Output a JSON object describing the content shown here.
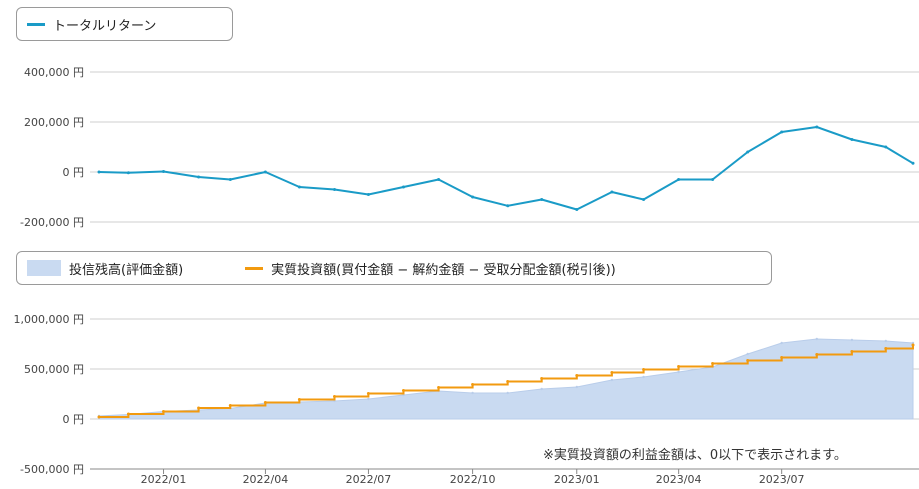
{
  "legend_top": {
    "series_label": "トータルリターン",
    "color": "#1a9bc7"
  },
  "legend_bottom": {
    "area_label": "投信残高(評価金額)",
    "area_color": "#c9daf1",
    "line_label": "実質投資額(買付金額 − 解約金額 − 受取分配金額(税引後))",
    "line_color": "#f29a0f"
  },
  "note": "※実質投資額の利益金額は、0以下で表示されます。",
  "chart_data": [
    {
      "type": "line",
      "title": "",
      "series": [
        {
          "name": "トータルリターン",
          "color": "#1a9bc7",
          "x": [
            "2021-11-05",
            "2021-12-01",
            "2022-01-01",
            "2022-02-01",
            "2022-03-01",
            "2022-04-01",
            "2022-05-01",
            "2022-06-01",
            "2022-07-01",
            "2022-08-01",
            "2022-09-01",
            "2022-10-01",
            "2022-11-01",
            "2022-12-01",
            "2023-01-01",
            "2023-02-01",
            "2023-03-01",
            "2023-04-01",
            "2023-05-01",
            "2023-06-01",
            "2023-07-01",
            "2023-08-01",
            "2023-09-01",
            "2023-10-01",
            "2023-10-25"
          ],
          "values": [
            0,
            -3000,
            2000,
            -20000,
            -30000,
            0,
            -60000,
            -70000,
            -90000,
            -60000,
            -30000,
            -100000,
            -135000,
            -110000,
            -150000,
            -80000,
            -110000,
            -30000,
            -30000,
            80000,
            160000,
            180000,
            130000,
            100000,
            35000
          ]
        }
      ],
      "yticks": [
        "400,000 円",
        "200,000 円",
        "0 円",
        "-200,000 円"
      ],
      "ylim": [
        -200000,
        400000
      ]
    },
    {
      "type": "area",
      "title": "",
      "x": [
        "2021-11-05",
        "2021-12-01",
        "2022-01-01",
        "2022-02-01",
        "2022-03-01",
        "2022-04-01",
        "2022-05-01",
        "2022-06-01",
        "2022-07-01",
        "2022-08-01",
        "2022-09-01",
        "2022-10-01",
        "2022-11-01",
        "2022-12-01",
        "2023-01-01",
        "2023-02-01",
        "2023-03-01",
        "2023-04-01",
        "2023-05-01",
        "2023-06-01",
        "2023-07-01",
        "2023-08-01",
        "2023-09-01",
        "2023-10-01",
        "2023-10-25"
      ],
      "series": [
        {
          "name": "投信残高(評価金額)",
          "color": "#c9daf1",
          "values": [
            30000,
            45000,
            75000,
            90000,
            105000,
            160000,
            170000,
            180000,
            200000,
            240000,
            280000,
            260000,
            260000,
            300000,
            320000,
            390000,
            420000,
            470000,
            520000,
            650000,
            760000,
            800000,
            790000,
            780000,
            760000
          ]
        },
        {
          "name": "実質投資額(買付金額 − 解約金額 − 受取分配金額(税引後))",
          "color": "#f29a0f",
          "values": [
            20000,
            50000,
            75000,
            110000,
            135000,
            165000,
            195000,
            225000,
            255000,
            285000,
            315000,
            345000,
            375000,
            405000,
            435000,
            465000,
            495000,
            525000,
            555000,
            585000,
            615000,
            645000,
            675000,
            705000,
            740000
          ]
        }
      ],
      "yticks": [
        "1,000,000 円",
        "500,000 円",
        "0 円",
        "-500,000 円"
      ],
      "ylim": [
        -500000,
        1000000
      ]
    }
  ],
  "xaxis": {
    "ticks": [
      "2022/01",
      "2022/04",
      "2022/07",
      "2022/10",
      "2023/01",
      "2023/04",
      "2023/07"
    ]
  }
}
